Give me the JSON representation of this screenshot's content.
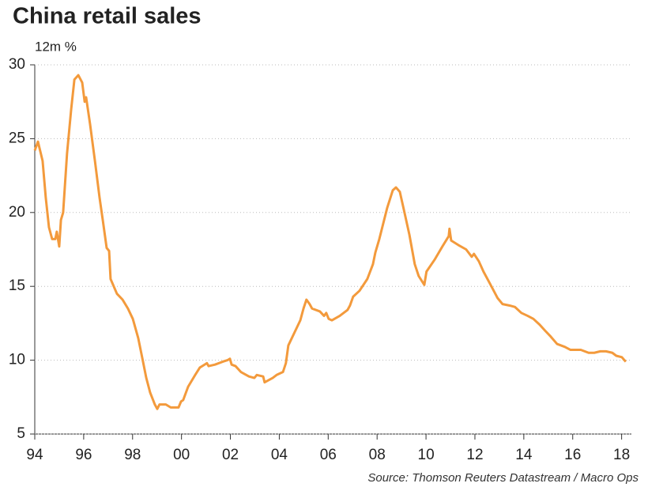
{
  "chart_data": {
    "type": "line",
    "title": "China retail sales",
    "subtitle": "12m %",
    "source": "Source: Thomson Reuters Datastream / Macro Ops",
    "xlim": [
      1994,
      2018.4
    ],
    "ylim": [
      5,
      30
    ],
    "yticks": [
      5,
      10,
      15,
      20,
      25,
      30
    ],
    "xticks": [
      {
        "value": 1994,
        "label": "94"
      },
      {
        "value": 1996,
        "label": "96"
      },
      {
        "value": 1998,
        "label": "98"
      },
      {
        "value": 2000,
        "label": "00"
      },
      {
        "value": 2002,
        "label": "02"
      },
      {
        "value": 2004,
        "label": "04"
      },
      {
        "value": 2006,
        "label": "06"
      },
      {
        "value": 2008,
        "label": "08"
      },
      {
        "value": 2010,
        "label": "10"
      },
      {
        "value": 2012,
        "label": "12"
      },
      {
        "value": 2014,
        "label": "14"
      },
      {
        "value": 2016,
        "label": "16"
      },
      {
        "value": 2018,
        "label": "18"
      }
    ],
    "grid": true,
    "color": "#f39a3c",
    "x": [
      1994.0,
      1994.13,
      1994.32,
      1994.45,
      1994.58,
      1994.71,
      1994.84,
      1994.9,
      1995.0,
      1995.07,
      1995.16,
      1995.32,
      1995.49,
      1995.62,
      1995.78,
      1995.94,
      1996.04,
      1996.1,
      1996.26,
      1996.46,
      1996.65,
      1996.78,
      1996.94,
      1997.04,
      1997.1,
      1997.36,
      1997.59,
      1997.81,
      1998.01,
      1998.23,
      1998.39,
      1998.56,
      1998.72,
      1998.91,
      1999.01,
      1999.1,
      1999.36,
      1999.56,
      1999.75,
      1999.88,
      1999.98,
      2000.07,
      2000.27,
      2000.56,
      2000.75,
      2001.04,
      2001.11,
      2001.37,
      2001.69,
      2001.88,
      2001.98,
      2002.05,
      2002.21,
      2002.43,
      2002.76,
      2002.98,
      2003.08,
      2003.34,
      2003.4,
      2003.73,
      2003.89,
      2004.15,
      2004.27,
      2004.37,
      2004.6,
      2004.86,
      2004.99,
      2005.11,
      2005.24,
      2005.34,
      2005.66,
      2005.83,
      2005.92,
      2006.02,
      2006.15,
      2006.47,
      2006.79,
      2006.89,
      2007.02,
      2007.28,
      2007.6,
      2007.83,
      2007.93,
      2008.09,
      2008.41,
      2008.64,
      2008.77,
      2008.93,
      2009.12,
      2009.32,
      2009.54,
      2009.7,
      2009.93,
      2010.02,
      2010.35,
      2010.67,
      2010.93,
      2010.96,
      2011.03,
      2011.32,
      2011.64,
      2011.87,
      2011.96,
      2012.16,
      2012.35,
      2012.61,
      2012.93,
      2013.13,
      2013.42,
      2013.64,
      2013.9,
      2014.16,
      2014.39,
      2014.65,
      2014.87,
      2015.1,
      2015.36,
      2015.68,
      2015.91,
      2016.33,
      2016.65,
      2016.88,
      2017.13,
      2017.36,
      2017.62,
      2017.78,
      2018.01,
      2018.17
    ],
    "values": [
      24.2,
      24.8,
      23.5,
      21.0,
      19.0,
      18.2,
      18.2,
      18.7,
      17.7,
      19.5,
      20.0,
      24.0,
      27.0,
      29.0,
      29.3,
      28.8,
      27.5,
      27.8,
      26.0,
      23.5,
      21.0,
      19.5,
      17.6,
      17.4,
      15.5,
      14.5,
      14.1,
      13.5,
      12.8,
      11.5,
      10.2,
      8.8,
      7.8,
      7.0,
      6.7,
      7.0,
      7.0,
      6.8,
      6.8,
      6.8,
      7.2,
      7.3,
      8.2,
      9.0,
      9.5,
      9.8,
      9.6,
      9.7,
      9.9,
      10.0,
      10.1,
      9.7,
      9.6,
      9.2,
      8.9,
      8.8,
      9.0,
      8.9,
      8.5,
      8.8,
      9.0,
      9.2,
      9.8,
      11.0,
      11.8,
      12.7,
      13.5,
      14.1,
      13.8,
      13.5,
      13.3,
      13.0,
      13.2,
      12.8,
      12.7,
      13.0,
      13.4,
      13.7,
      14.3,
      14.7,
      15.5,
      16.5,
      17.3,
      18.2,
      20.3,
      21.5,
      21.7,
      21.4,
      20.0,
      18.5,
      16.5,
      15.7,
      15.1,
      16.0,
      16.8,
      17.7,
      18.4,
      18.9,
      18.1,
      17.8,
      17.5,
      17.0,
      17.2,
      16.7,
      16.0,
      15.2,
      14.2,
      13.8,
      13.7,
      13.6,
      13.2,
      13.0,
      12.8,
      12.4,
      12.0,
      11.6,
      11.1,
      10.9,
      10.7,
      10.7,
      10.5,
      10.5,
      10.6,
      10.6,
      10.5,
      10.3,
      10.2,
      9.9
    ]
  }
}
